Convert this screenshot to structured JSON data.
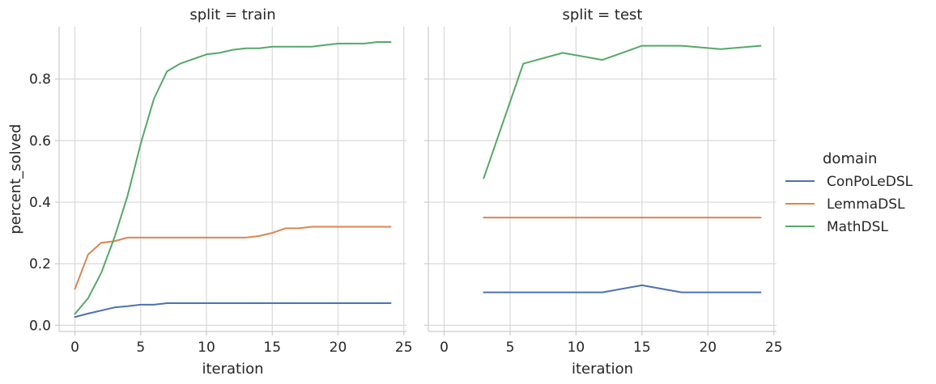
{
  "chart_data": {
    "type": "line",
    "xlabel": "iteration",
    "ylabel": "percent_solved",
    "xlim": [
      -1.2,
      25.2
    ],
    "ylim": [
      -0.02,
      0.97
    ],
    "xticks": [
      "0",
      "5",
      "10",
      "15",
      "20",
      "25"
    ],
    "yticks": [
      "0.0",
      "0.2",
      "0.4",
      "0.6",
      "0.8"
    ],
    "legend": {
      "title": "domain",
      "entries": [
        "ConPoLeDSL",
        "LemmaDSL",
        "MathDSL"
      ],
      "placement": "right"
    },
    "colors": {
      "ConPoLeDSL": "#4c72b0",
      "LemmaDSL": "#dd8452",
      "MathDSL": "#55a868"
    },
    "panels": [
      {
        "title": "split = train",
        "series": [
          {
            "name": "ConPoLeDSL",
            "x": [
              0,
              1,
              2,
              3,
              4,
              5,
              6,
              7,
              8,
              9,
              10,
              11,
              12,
              13,
              14,
              15,
              16,
              17,
              18,
              19,
              20,
              21,
              22,
              23,
              24
            ],
            "y": [
              0.027,
              0.038,
              0.048,
              0.058,
              0.062,
              0.067,
              0.067,
              0.072,
              0.072,
              0.072,
              0.072,
              0.072,
              0.072,
              0.072,
              0.072,
              0.072,
              0.072,
              0.072,
              0.072,
              0.072,
              0.072,
              0.072,
              0.072,
              0.072,
              0.072
            ]
          },
          {
            "name": "LemmaDSL",
            "x": [
              0,
              1,
              2,
              3,
              4,
              5,
              6,
              7,
              8,
              9,
              10,
              11,
              12,
              13,
              14,
              15,
              16,
              17,
              18,
              19,
              20,
              21,
              22,
              23,
              24
            ],
            "y": [
              0.118,
              0.23,
              0.268,
              0.273,
              0.285,
              0.285,
              0.285,
              0.285,
              0.285,
              0.285,
              0.285,
              0.285,
              0.285,
              0.285,
              0.29,
              0.3,
              0.315,
              0.315,
              0.32,
              0.32,
              0.32,
              0.32,
              0.32,
              0.32,
              0.32
            ]
          },
          {
            "name": "MathDSL",
            "x": [
              0,
              1,
              2,
              3,
              4,
              5,
              6,
              7,
              8,
              9,
              10,
              11,
              12,
              13,
              14,
              15,
              16,
              17,
              18,
              19,
              20,
              21,
              22,
              23,
              24
            ],
            "y": [
              0.037,
              0.088,
              0.17,
              0.285,
              0.42,
              0.59,
              0.735,
              0.825,
              0.85,
              0.865,
              0.88,
              0.885,
              0.895,
              0.9,
              0.9,
              0.905,
              0.905,
              0.905,
              0.905,
              0.91,
              0.915,
              0.915,
              0.915,
              0.92,
              0.92
            ]
          }
        ]
      },
      {
        "title": "split = test",
        "series": [
          {
            "name": "ConPoLeDSL",
            "x": [
              3,
              6,
              9,
              12,
              15,
              18,
              21,
              24
            ],
            "y": [
              0.107,
              0.107,
              0.107,
              0.107,
              0.13,
              0.107,
              0.107,
              0.107
            ]
          },
          {
            "name": "LemmaDSL",
            "x": [
              3,
              6,
              9,
              12,
              15,
              18,
              21,
              24
            ],
            "y": [
              0.35,
              0.35,
              0.35,
              0.35,
              0.35,
              0.35,
              0.35,
              0.35
            ]
          },
          {
            "name": "MathDSL",
            "x": [
              3,
              6,
              9,
              12,
              15,
              18,
              21,
              24
            ],
            "y": [
              0.478,
              0.85,
              0.885,
              0.862,
              0.908,
              0.908,
              0.897,
              0.908
            ]
          }
        ]
      }
    ]
  }
}
